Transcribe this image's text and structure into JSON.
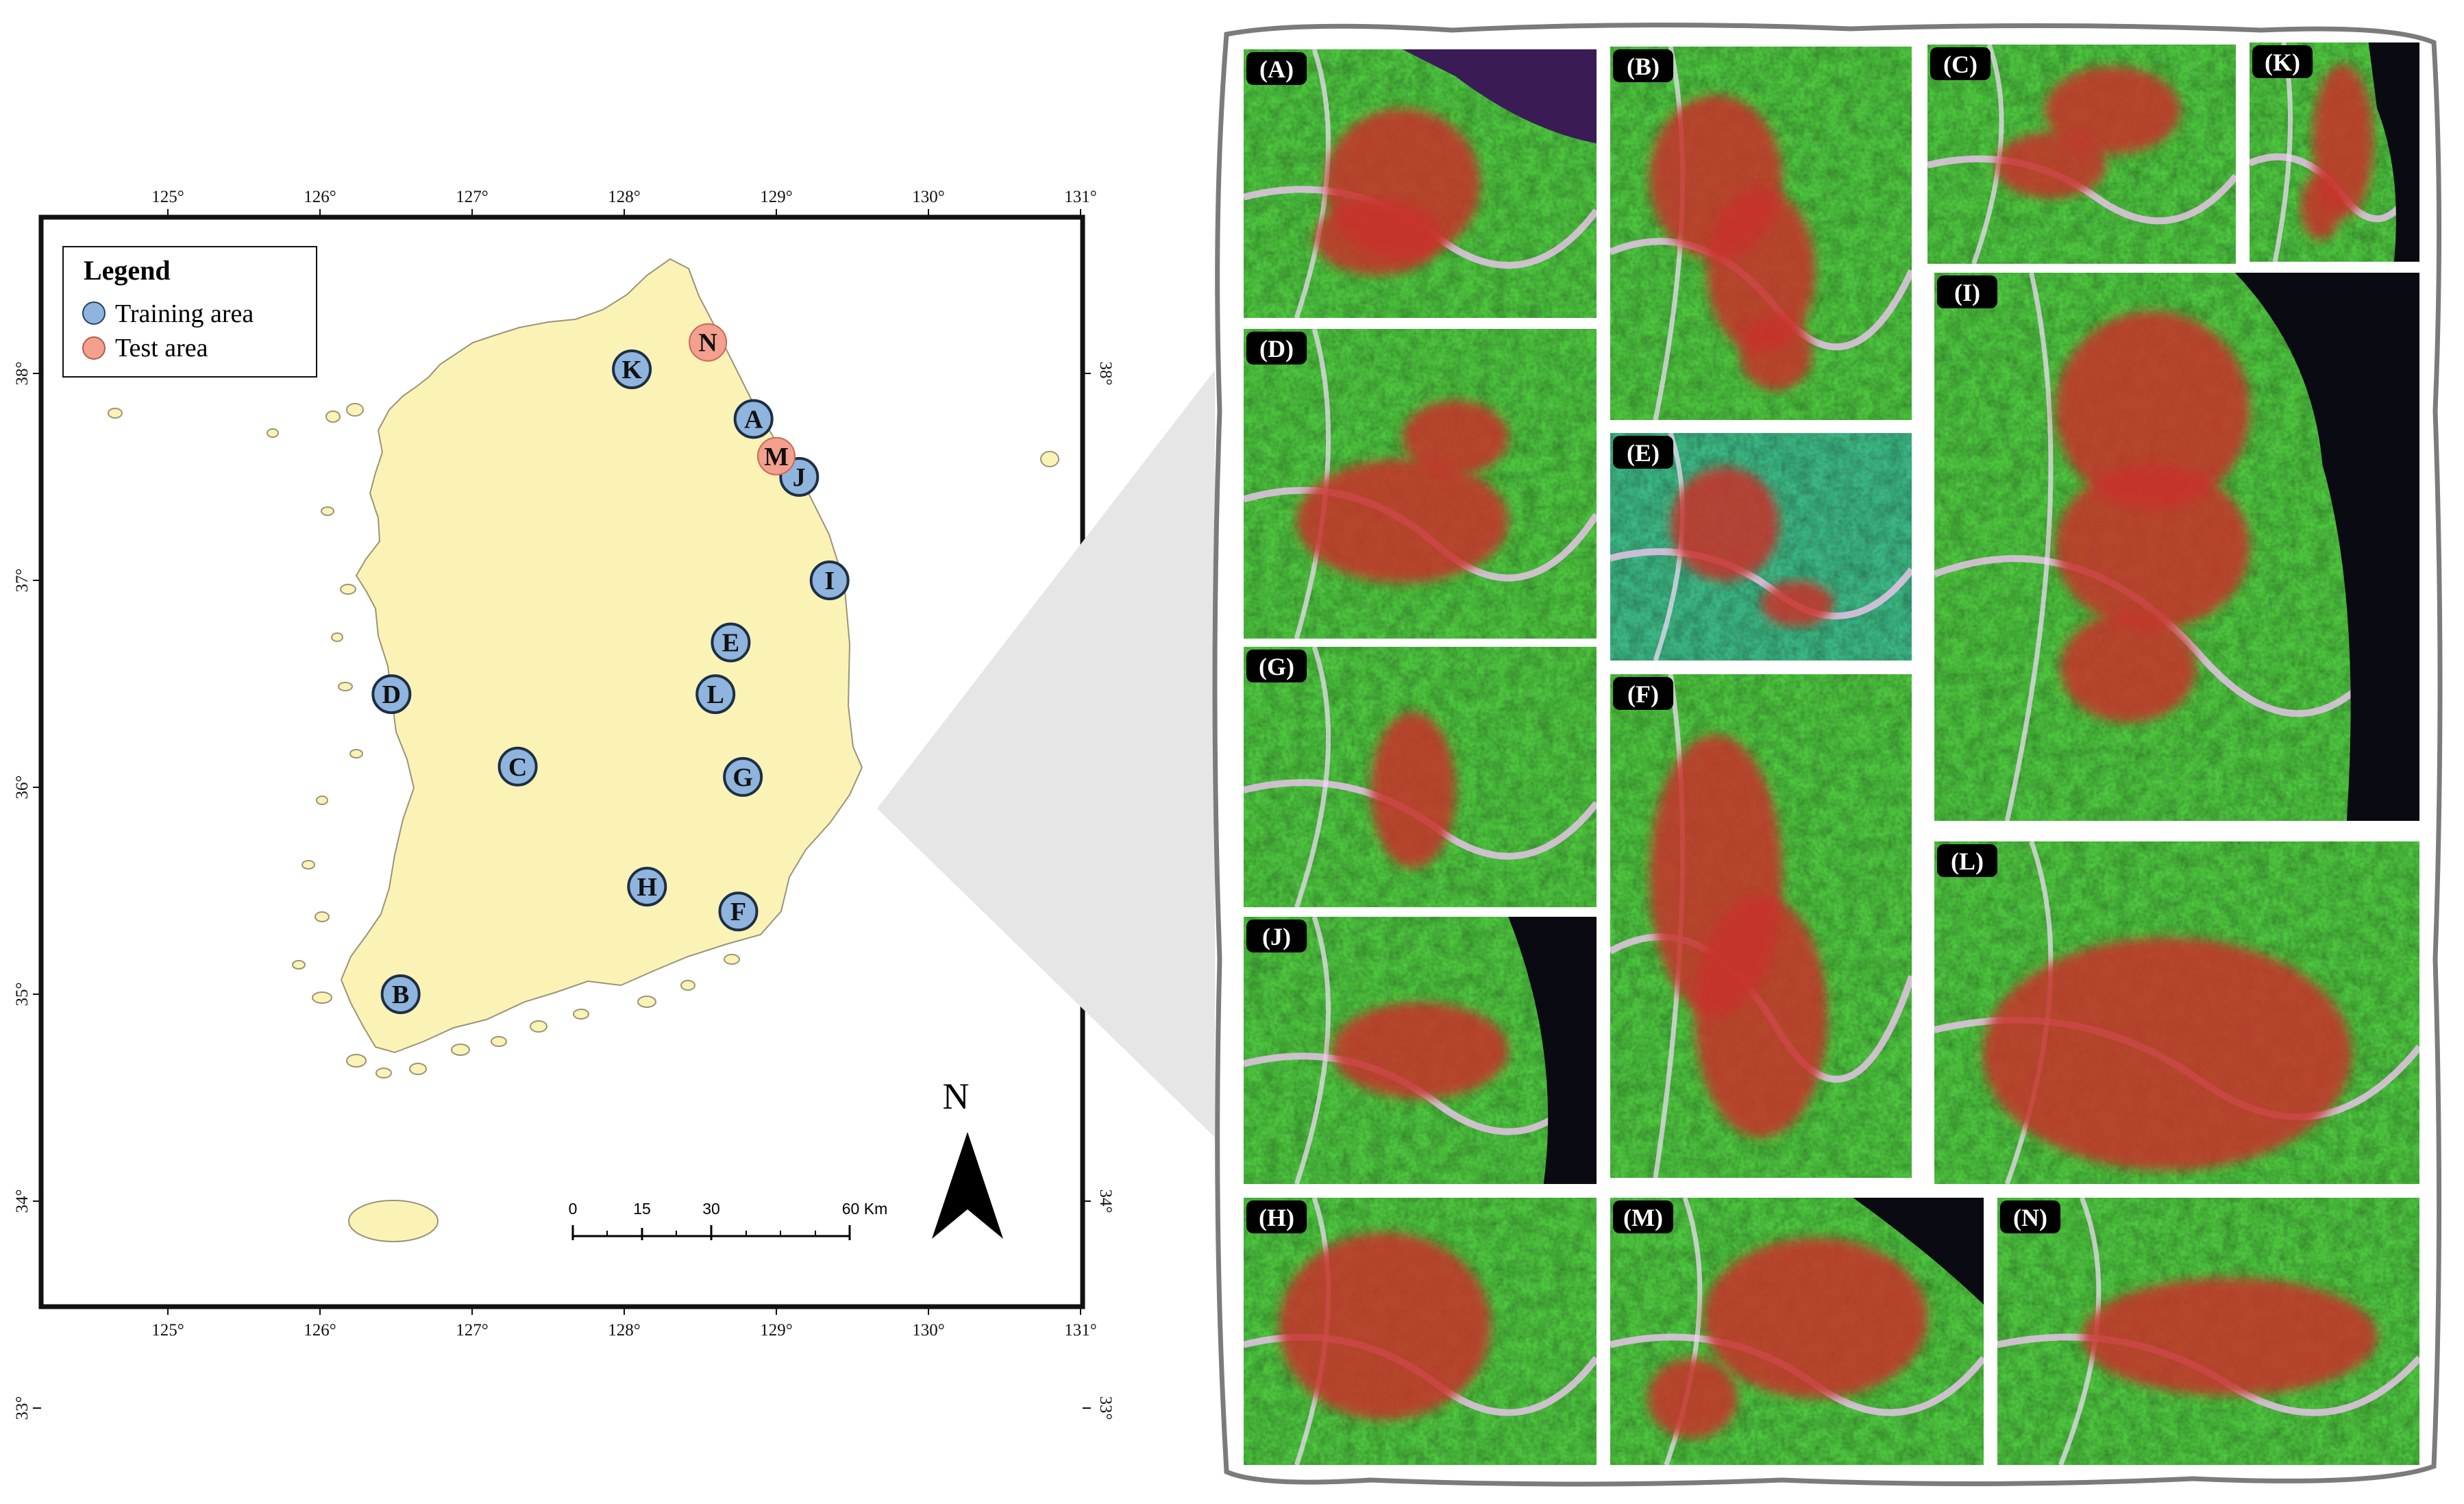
{
  "map": {
    "lon_ticks": [
      "125°",
      "126°",
      "127°",
      "128°",
      "129°",
      "130°",
      "131°"
    ],
    "lat_ticks": [
      "38°",
      "37°",
      "36°",
      "35°",
      "34°",
      "33°"
    ],
    "north_label": "N",
    "scale_bar": {
      "labels": [
        "0",
        "15",
        "30",
        "60 Km"
      ]
    }
  },
  "legend": {
    "title": "Legend",
    "items": [
      {
        "label": "Training area",
        "color": "#8fb4dd"
      },
      {
        "label": "Test area",
        "color": "#f4a08e"
      }
    ]
  },
  "markers": [
    {
      "label": "A",
      "type": "training",
      "lon": 128.85,
      "lat": 37.78
    },
    {
      "label": "B",
      "type": "training",
      "lon": 126.53,
      "lat": 35.0
    },
    {
      "label": "C",
      "type": "training",
      "lon": 127.3,
      "lat": 36.1
    },
    {
      "label": "D",
      "type": "training",
      "lon": 126.47,
      "lat": 36.45
    },
    {
      "label": "E",
      "type": "training",
      "lon": 128.7,
      "lat": 36.7
    },
    {
      "label": "F",
      "type": "training",
      "lon": 128.75,
      "lat": 35.4
    },
    {
      "label": "G",
      "type": "training",
      "lon": 128.78,
      "lat": 36.05
    },
    {
      "label": "H",
      "type": "training",
      "lon": 128.15,
      "lat": 35.52
    },
    {
      "label": "I",
      "type": "training",
      "lon": 129.35,
      "lat": 37.0
    },
    {
      "label": "J",
      "type": "training",
      "lon": 129.15,
      "lat": 37.5
    },
    {
      "label": "K",
      "type": "training",
      "lon": 128.05,
      "lat": 38.02
    },
    {
      "label": "L",
      "type": "training",
      "lon": 128.6,
      "lat": 36.45
    },
    {
      "label": "M",
      "type": "test",
      "lon": 129.0,
      "lat": 37.6
    },
    {
      "label": "N",
      "type": "test",
      "lon": 128.55,
      "lat": 38.15
    }
  ],
  "panels": [
    "(A)",
    "(B)",
    "(C)",
    "(K)",
    "(D)",
    "(I)",
    "(E)",
    "(G)",
    "(F)",
    "(L)",
    "(J)",
    "(H)",
    "(M)",
    "(N)"
  ]
}
